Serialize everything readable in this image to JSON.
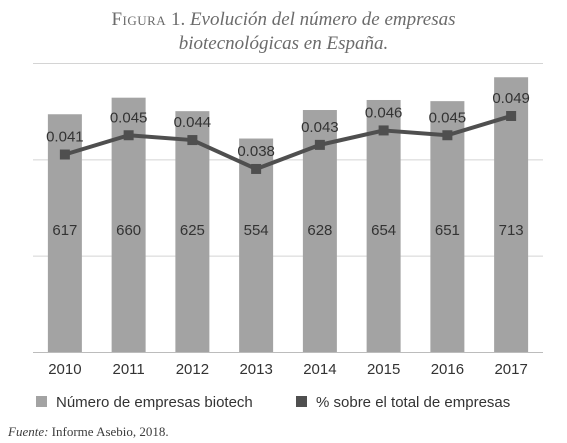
{
  "title": {
    "label": "Figura",
    "number": "1.",
    "line1": "Evolución del número de empresas",
    "line2": "biotecnológicas en España."
  },
  "source": {
    "label": "Fuente:",
    "text": "Informe Asebio, 2018."
  },
  "colors": {
    "bar": "#a3a3a3",
    "line": "#4f4f4f",
    "grid": "#d4d4d4",
    "text": "#333333"
  },
  "chart_data": {
    "type": "bar",
    "categories": [
      "2010",
      "2011",
      "2012",
      "2013",
      "2014",
      "2015",
      "2016",
      "2017"
    ],
    "series": [
      {
        "name": "Número de empresas biotech",
        "type": "bar",
        "axis": "left",
        "values": [
          617,
          660,
          625,
          554,
          628,
          654,
          651,
          713
        ],
        "labels": [
          "617",
          "660",
          "625",
          "554",
          "628",
          "654",
          "651",
          "713"
        ]
      },
      {
        "name": "% sobre el total de empresas",
        "type": "line",
        "axis": "right",
        "values": [
          0.041,
          0.045,
          0.044,
          0.038,
          0.043,
          0.046,
          0.045,
          0.049
        ],
        "labels": [
          "0.041",
          "0.045",
          "0.044",
          "0.038",
          "0.043",
          "0.046",
          "0.045",
          "0.049"
        ]
      }
    ],
    "ylim": [
      0,
      750
    ],
    "y2lim": [
      0,
      0.06
    ],
    "legend_position": "bottom",
    "grid": true
  }
}
